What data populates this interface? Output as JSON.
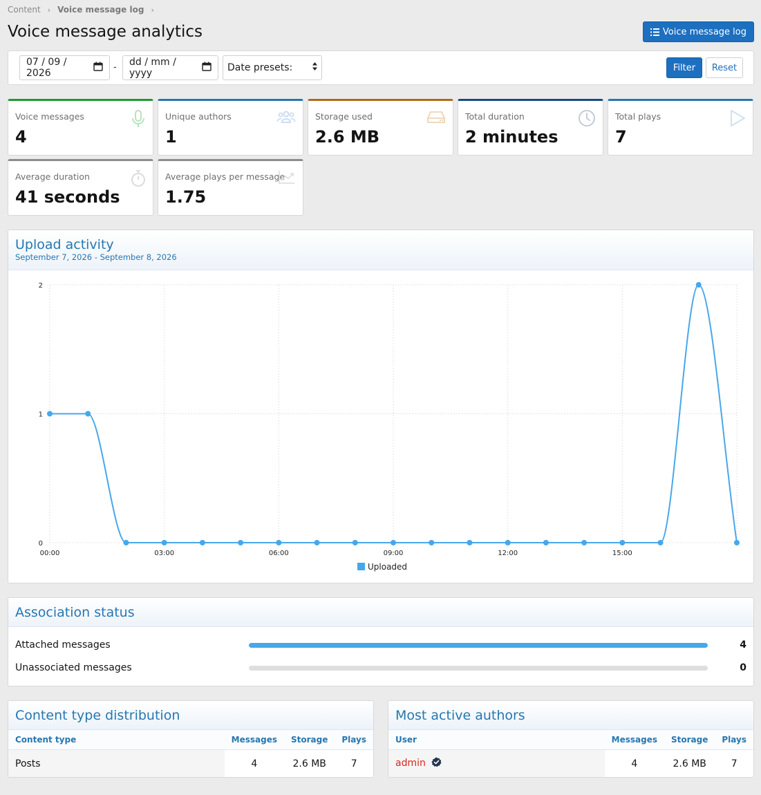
{
  "breadcrumb": {
    "items": [
      "Content",
      "Voice message log"
    ]
  },
  "page": {
    "title": "Voice message analytics"
  },
  "header": {
    "log_button_label": "Voice message log"
  },
  "filters": {
    "start_date": "07 / 09 / 2026",
    "end_date": "dd / mm / yyyy",
    "separator": "-",
    "presets_label": "Date presets:",
    "filter_label": "Filter",
    "reset_label": "Reset"
  },
  "stats": [
    {
      "label": "Voice messages",
      "value": "4",
      "icon": "microphone-icon",
      "accent": "#1e9a2e"
    },
    {
      "label": "Unique authors",
      "value": "1",
      "icon": "users-icon",
      "accent": "#2577b1"
    },
    {
      "label": "Storage used",
      "value": "2.6 MB",
      "icon": "hard-drive-icon",
      "accent": "#b26a16"
    },
    {
      "label": "Total duration",
      "value": "2 minutes",
      "icon": "clock-icon",
      "accent": "#164a82"
    },
    {
      "label": "Total plays",
      "value": "7",
      "icon": "play-icon",
      "accent": "#2577b1"
    },
    {
      "label": "Average duration",
      "value": "41 seconds",
      "icon": "stopwatch-icon",
      "accent": "#8c8c8c"
    },
    {
      "label": "Average plays per message",
      "value": "1.75",
      "icon": "chart-line-icon",
      "accent": "#8c8c8c"
    }
  ],
  "upload_activity": {
    "title": "Upload activity",
    "subtitle": "September 7, 2026 - September 8, 2026"
  },
  "chart_data": {
    "type": "line",
    "x": [
      "00:00",
      "01:00",
      "02:00",
      "03:00",
      "04:00",
      "05:00",
      "06:00",
      "07:00",
      "08:00",
      "09:00",
      "10:00",
      "11:00",
      "12:00",
      "13:00",
      "14:00",
      "15:00",
      "16:00",
      "17:00",
      "18:00"
    ],
    "xtick_labels": [
      "00:00",
      "03:00",
      "06:00",
      "09:00",
      "12:00",
      "15:00"
    ],
    "series": [
      {
        "name": "Uploaded",
        "values": [
          1,
          1,
          0,
          0,
          0,
          0,
          0,
          0,
          0,
          0,
          0,
          0,
          0,
          0,
          0,
          0,
          0,
          2,
          0
        ],
        "color": "#47a7eb"
      }
    ],
    "ylim": [
      0,
      2
    ],
    "yticks": [
      0,
      1,
      2
    ],
    "grid": true,
    "legend": "bottom",
    "smooth": true
  },
  "association": {
    "title": "Association status",
    "rows": [
      {
        "label": "Attached messages",
        "count": "4",
        "fraction": 1.0
      },
      {
        "label": "Unassociated messages",
        "count": "0",
        "fraction": 0.0
      }
    ]
  },
  "content_types": {
    "title": "Content type distribution",
    "columns": [
      "Content type",
      "Messages",
      "Storage",
      "Plays"
    ],
    "rows": [
      [
        "Posts",
        "4",
        "2.6 MB",
        "7"
      ]
    ]
  },
  "authors": {
    "title": "Most active authors",
    "columns": [
      "User",
      "Messages",
      "Storage",
      "Plays"
    ],
    "rows": [
      [
        "admin",
        "4",
        "2.6 MB",
        "7"
      ]
    ],
    "user_color": "#d8271d"
  }
}
